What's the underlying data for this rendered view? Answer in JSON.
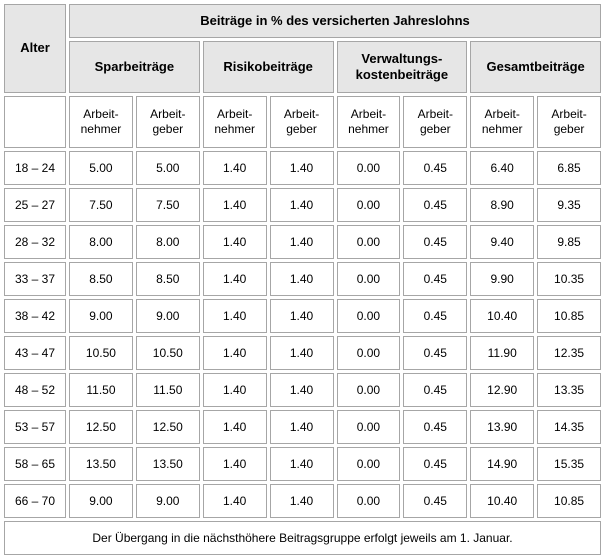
{
  "colors": {
    "background": "#ffffff",
    "header_bg": "#e6e6e6",
    "border": "#a6a6a6",
    "text": "#000000"
  },
  "table": {
    "corner_label": "Alter",
    "title": "Beiträge in % des versicherten Jahreslohns",
    "group_headers": [
      "Sparbeiträge",
      "Risikobeiträge",
      "Verwaltungs-\nkostenbeiträge",
      "Gesamtbeiträge"
    ],
    "sub_headers": [
      "Arbeit-\nnehmer",
      "Arbeit-\ngeber",
      "Arbeit-\nnehmer",
      "Arbeit-\ngeber",
      "Arbeit-\nnehmer",
      "Arbeit-\ngeber",
      "Arbeit-\nnehmer",
      "Arbeit-\ngeber"
    ],
    "rows": [
      {
        "age": "18 – 24",
        "values": [
          "5.00",
          "5.00",
          "1.40",
          "1.40",
          "0.00",
          "0.45",
          "6.40",
          "6.85"
        ]
      },
      {
        "age": "25 – 27",
        "values": [
          "7.50",
          "7.50",
          "1.40",
          "1.40",
          "0.00",
          "0.45",
          "8.90",
          "9.35"
        ]
      },
      {
        "age": "28 – 32",
        "values": [
          "8.00",
          "8.00",
          "1.40",
          "1.40",
          "0.00",
          "0.45",
          "9.40",
          "9.85"
        ]
      },
      {
        "age": "33 – 37",
        "values": [
          "8.50",
          "8.50",
          "1.40",
          "1.40",
          "0.00",
          "0.45",
          "9.90",
          "10.35"
        ]
      },
      {
        "age": "38 – 42",
        "values": [
          "9.00",
          "9.00",
          "1.40",
          "1.40",
          "0.00",
          "0.45",
          "10.40",
          "10.85"
        ]
      },
      {
        "age": "43 – 47",
        "values": [
          "10.50",
          "10.50",
          "1.40",
          "1.40",
          "0.00",
          "0.45",
          "11.90",
          "12.35"
        ]
      },
      {
        "age": "48 – 52",
        "values": [
          "11.50",
          "11.50",
          "1.40",
          "1.40",
          "0.00",
          "0.45",
          "12.90",
          "13.35"
        ]
      },
      {
        "age": "53 – 57",
        "values": [
          "12.50",
          "12.50",
          "1.40",
          "1.40",
          "0.00",
          "0.45",
          "13.90",
          "14.35"
        ]
      },
      {
        "age": "58 – 65",
        "values": [
          "13.50",
          "13.50",
          "1.40",
          "1.40",
          "0.00",
          "0.45",
          "14.90",
          "15.35"
        ]
      },
      {
        "age": "66 – 70",
        "values": [
          "9.00",
          "9.00",
          "1.40",
          "1.40",
          "0.00",
          "0.45",
          "10.40",
          "10.85"
        ]
      }
    ],
    "footnote": "Der Übergang in die nächsthöhere Beitragsgruppe erfolgt jeweils am 1. Januar."
  }
}
